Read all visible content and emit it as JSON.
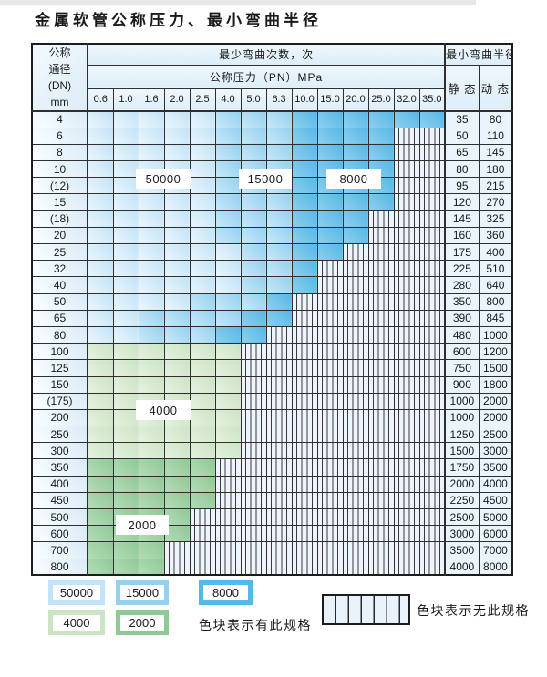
{
  "title": "金属软管公称压力、最小弯曲半径",
  "header": {
    "corner": {
      "l1": "公称",
      "l2": "通径",
      "l3": "(DN)",
      "l4": "mm"
    },
    "bend_cycles": "最少弯曲次数，次",
    "pressure": "公称压力（PN）MPa",
    "radius": "最小弯曲半径",
    "static": "静 态",
    "dynamic": "动 态"
  },
  "colors": {
    "c50000": "#c3e3f6",
    "c50000_light": "#eaf6fd",
    "c15000": "#95d1ef",
    "c15000_light": "#c9e8f9",
    "c8000": "#57b7e6",
    "c8000_light": "#8ed0ef",
    "c4000": "#cbe4c5",
    "c4000_light": "#e6f2e0",
    "c2000": "#8fc997",
    "c2000_light": "#b5dcb7",
    "hatch_bg": "#edf4fb",
    "border": "#1c1c1c"
  },
  "chart_data": {
    "type": "heatmap",
    "title": "金属软管公称压力、最小弯曲半径",
    "x_label": "公称压力（PN）MPa",
    "y_label": "公称通径 (DN) mm",
    "columns": [
      "0.6",
      "1.0",
      "1.6",
      "2.0",
      "2.5",
      "4.0",
      "5.0",
      "6.3",
      "10.0",
      "15.0",
      "20.0",
      "25.0",
      "32.0",
      "35.0"
    ],
    "cell_code_legend": {
      "L": "50000",
      "M": "15000",
      "D": "8000",
      "G": "4000",
      "H": "2000",
      "X": "无此规格"
    },
    "rows": [
      {
        "dn": "4",
        "cells": "LLLLLMMMDDDDDD",
        "static": "35",
        "dynamic": "80"
      },
      {
        "dn": "6",
        "cells": "LLLLLMMMDDDDXX",
        "static": "50",
        "dynamic": "110"
      },
      {
        "dn": "8",
        "cells": "LLLLLMMMDDDDXX",
        "static": "65",
        "dynamic": "145"
      },
      {
        "dn": "10",
        "cells": "LLLLLMMMDDDDXX",
        "static": "80",
        "dynamic": "180"
      },
      {
        "dn": "(12)",
        "cells": "LLLLLMMMDDDDXX",
        "static": "95",
        "dynamic": "215"
      },
      {
        "dn": "15",
        "cells": "LLLLLMMMDDDDXX",
        "static": "120",
        "dynamic": "270"
      },
      {
        "dn": "(18)",
        "cells": "LLLLLMMMDDDXXX",
        "static": "145",
        "dynamic": "325"
      },
      {
        "dn": "20",
        "cells": "LLLLLMMMDDDXXX",
        "static": "160",
        "dynamic": "360"
      },
      {
        "dn": "25",
        "cells": "LLLLLLMMDDXXXX",
        "static": "175",
        "dynamic": "400"
      },
      {
        "dn": "32",
        "cells": "LLLLLLMMDXXXXX",
        "static": "225",
        "dynamic": "510"
      },
      {
        "dn": "40",
        "cells": "LLLLLLMMDXXXXX",
        "static": "280",
        "dynamic": "640"
      },
      {
        "dn": "50",
        "cells": "LLLLMMMDXXXXXX",
        "static": "350",
        "dynamic": "800"
      },
      {
        "dn": "65",
        "cells": "LLMMMMDDXXXXXX",
        "static": "390",
        "dynamic": "845"
      },
      {
        "dn": "80",
        "cells": "LLMMMDDXXXXXXX",
        "static": "480",
        "dynamic": "1000"
      },
      {
        "dn": "100",
        "cells": "GGGGGGXXXXXXXX",
        "static": "600",
        "dynamic": "1200"
      },
      {
        "dn": "125",
        "cells": "GGGGGGXXXXXXXX",
        "static": "750",
        "dynamic": "1500"
      },
      {
        "dn": "150",
        "cells": "GGGGGGXXXXXXXX",
        "static": "900",
        "dynamic": "1800"
      },
      {
        "dn": "(175)",
        "cells": "GGGGGGXXXXXXXX",
        "static": "1000",
        "dynamic": "2000"
      },
      {
        "dn": "200",
        "cells": "GGGGGGXXXXXXXX",
        "static": "1000",
        "dynamic": "2000"
      },
      {
        "dn": "250",
        "cells": "GGGGGGXXXXXXXX",
        "static": "1250",
        "dynamic": "2500"
      },
      {
        "dn": "300",
        "cells": "GGGGGGXXXXXXXX",
        "static": "1500",
        "dynamic": "3000"
      },
      {
        "dn": "350",
        "cells": "HHHHHXXXXXXXXX",
        "static": "1750",
        "dynamic": "3500"
      },
      {
        "dn": "400",
        "cells": "HHHHHXXXXXXXXX",
        "static": "2000",
        "dynamic": "4000"
      },
      {
        "dn": "450",
        "cells": "HHHHHXXXXXXXXX",
        "static": "2250",
        "dynamic": "4500"
      },
      {
        "dn": "500",
        "cells": "HHHHXXXXXXXXXX",
        "static": "2500",
        "dynamic": "5000"
      },
      {
        "dn": "600",
        "cells": "HHHHXXXXXXXXXX",
        "static": "3000",
        "dynamic": "6000"
      },
      {
        "dn": "700",
        "cells": "HHHXXXXXXXXXXX",
        "static": "3500",
        "dynamic": "7000"
      },
      {
        "dn": "800",
        "cells": "HHHXXXXXXXXXXX",
        "static": "4000",
        "dynamic": "8000"
      }
    ]
  },
  "overlays": [
    {
      "label": "50000"
    },
    {
      "label": "15000"
    },
    {
      "label": "8000"
    },
    {
      "label": "4000"
    },
    {
      "label": "2000"
    }
  ],
  "legend": {
    "items": [
      {
        "label": "50000",
        "color_key": "c50000"
      },
      {
        "label": "15000",
        "color_key": "c15000"
      },
      {
        "label": "8000",
        "color_key": "c8000"
      },
      {
        "label": "4000",
        "color_key": "c4000"
      },
      {
        "label": "2000",
        "color_key": "c2000"
      }
    ],
    "has_spec_text": "色块表示有此规格",
    "no_spec_text": "色块表示无此规格"
  }
}
